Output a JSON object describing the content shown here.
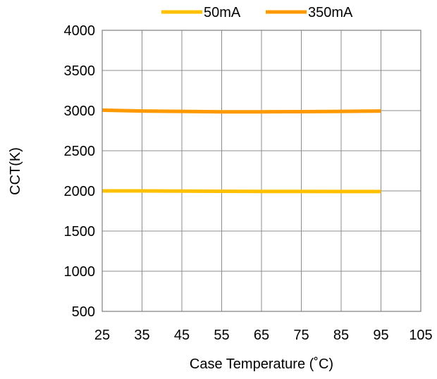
{
  "chart_data": {
    "type": "line",
    "title": "",
    "xlabel": "Case Temperature (˚C)",
    "ylabel": "CCT(K)",
    "xlim": [
      25,
      105
    ],
    "ylim": [
      500,
      4000
    ],
    "x_ticks": [
      25,
      35,
      45,
      55,
      65,
      75,
      85,
      95,
      105
    ],
    "y_ticks": [
      500,
      1000,
      1500,
      2000,
      2500,
      3000,
      3500,
      4000
    ],
    "grid": true,
    "legend_position": "top",
    "series": [
      {
        "name": "50mA",
        "color": "#FFC000",
        "x": [
          25,
          35,
          45,
          55,
          65,
          75,
          85,
          95
        ],
        "y": [
          2000,
          2000,
          1998,
          1996,
          1994,
          1993,
          1992,
          1992
        ]
      },
      {
        "name": "350mA",
        "color": "#FF9900",
        "x": [
          25,
          35,
          45,
          55,
          65,
          75,
          85,
          95
        ],
        "y": [
          3005,
          2995,
          2990,
          2985,
          2985,
          2987,
          2990,
          2995
        ]
      }
    ]
  }
}
